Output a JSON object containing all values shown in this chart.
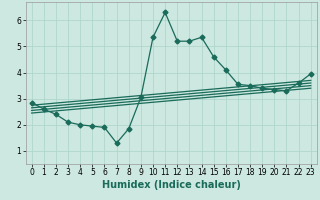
{
  "title": "",
  "xlabel": "Humidex (Indice chaleur)",
  "ylabel": "",
  "background_color": "#cce8e0",
  "line_color": "#1a6b5a",
  "xlim": [
    -0.5,
    23.5
  ],
  "ylim": [
    0.5,
    6.7
  ],
  "yticks": [
    1,
    2,
    3,
    4,
    5,
    6
  ],
  "xticks": [
    0,
    1,
    2,
    3,
    4,
    5,
    6,
    7,
    8,
    9,
    10,
    11,
    12,
    13,
    14,
    15,
    16,
    17,
    18,
    19,
    20,
    21,
    22,
    23
  ],
  "series": [
    {
      "x": [
        0,
        1,
        2,
        3,
        4,
        5,
        6,
        7,
        8,
        9,
        10,
        11,
        12,
        13,
        14,
        15,
        16,
        17,
        18,
        19,
        20,
        21,
        22,
        23
      ],
      "y": [
        2.85,
        2.6,
        2.4,
        2.1,
        2.0,
        1.95,
        1.9,
        1.3,
        1.85,
        3.05,
        5.35,
        6.3,
        5.2,
        5.2,
        5.35,
        4.6,
        4.1,
        3.55,
        3.5,
        3.4,
        3.35,
        3.3,
        3.6,
        3.95
      ],
      "has_markers": true
    },
    {
      "x": [
        0,
        23
      ],
      "y": [
        2.75,
        3.7
      ],
      "has_markers": false
    },
    {
      "x": [
        0,
        23
      ],
      "y": [
        2.65,
        3.6
      ],
      "has_markers": false
    },
    {
      "x": [
        0,
        23
      ],
      "y": [
        2.55,
        3.5
      ],
      "has_markers": false
    },
    {
      "x": [
        0,
        23
      ],
      "y": [
        2.45,
        3.4
      ],
      "has_markers": false
    }
  ],
  "marker": "D",
  "markersize": 2.5,
  "linewidth": 0.9,
  "grid_color": "#aad4c8",
  "xlabel_fontsize": 7,
  "tick_fontsize": 5.5
}
